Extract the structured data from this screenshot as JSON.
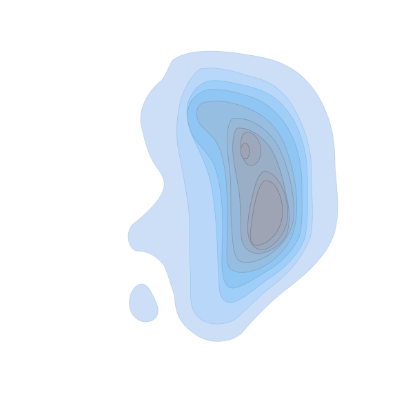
{
  "chart_data": {
    "type": "contour",
    "title": "",
    "xlabel": "",
    "ylabel": "",
    "axes_visible": false,
    "grid": false,
    "legend": "none",
    "levels": [
      {
        "level": 1,
        "fill": "#cddff7",
        "stroke": "#b9cfef"
      },
      {
        "level": 2,
        "fill": "#b9d8f9",
        "stroke": "#9ec6f0"
      },
      {
        "level": 3,
        "fill": "#9fcff9",
        "stroke": "#86bfea"
      },
      {
        "level": 4,
        "fill": "#90c6f3",
        "stroke": "#7fb0d8"
      },
      {
        "level": 5,
        "fill": "#96bee0",
        "stroke": "#7fa4c4"
      },
      {
        "level": 6,
        "fill": "#98b8d8",
        "stroke": "#7b98b8"
      },
      {
        "level": 7,
        "fill": "#9aaec6",
        "stroke": "#7890aa"
      },
      {
        "level": 8,
        "fill": "#9ca8bc",
        "stroke": "#78879c"
      },
      {
        "level": 9,
        "fill": "#9ea4b4",
        "stroke": "#76808f"
      }
    ]
  }
}
